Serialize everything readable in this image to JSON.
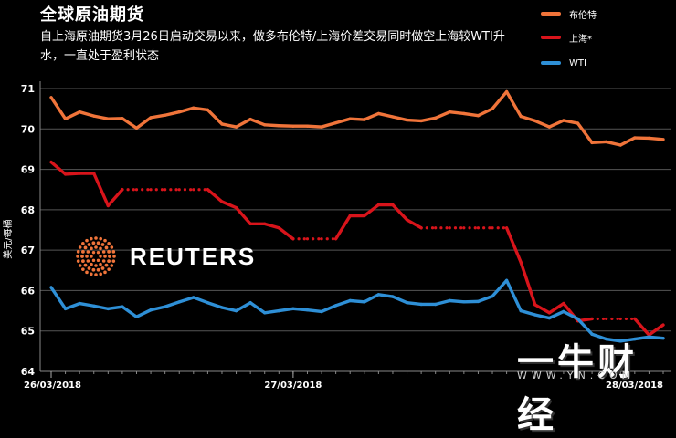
{
  "header": {
    "title": "全球原油期货",
    "subtitle": "自上海原油期货3月26日启动交易以来，做多布伦特/上海价差交易同时做空上海较WTI升水，一直处于盈利状态"
  },
  "branding": {
    "reuters": "REUTERS",
    "watermark_brand": "一牛财经",
    "watermark_url": "WWW.YN.COM"
  },
  "colors": {
    "brent": "#f0743a",
    "shanghai": "#d8141b",
    "wti": "#2e8fd6",
    "grid": "#555555"
  },
  "chart_data": {
    "type": "line",
    "title": "全球原油期货",
    "ylabel": "美元/每桶",
    "xlabel": "",
    "ylim": [
      64,
      71
    ],
    "yticks": [
      64,
      65,
      66,
      67,
      68,
      69,
      70,
      71
    ],
    "x_tick_labels": [
      "26/03/2018",
      "27/03/2018",
      "28/03/2018"
    ],
    "x_tick_positions": [
      0,
      17,
      34
    ],
    "grid": true,
    "legend_position": "top-right",
    "series": [
      {
        "name": "布伦特",
        "color": "#f0743a",
        "values": [
          70.78,
          70.25,
          70.42,
          70.32,
          70.25,
          70.26,
          70.02,
          70.28,
          70.34,
          70.42,
          70.52,
          70.47,
          70.12,
          70.05,
          70.24,
          70.1,
          70.08,
          70.07,
          70.07,
          70.05,
          70.15,
          70.25,
          70.23,
          70.38,
          70.3,
          70.22,
          70.2,
          70.27,
          70.42,
          70.38,
          70.33,
          70.5,
          70.92,
          70.31,
          70.2,
          70.05,
          70.21,
          70.14,
          69.66,
          69.68,
          69.6,
          69.78,
          69.77,
          69.74
        ]
      },
      {
        "name": "上海*",
        "color": "#d8141b",
        "values": [
          69.18,
          68.88,
          68.9,
          68.9,
          68.1,
          68.5,
          68.5,
          68.5,
          68.5,
          68.5,
          68.5,
          68.5,
          68.2,
          68.05,
          67.65,
          67.65,
          67.55,
          67.28,
          67.28,
          67.28,
          67.28,
          67.85,
          67.85,
          68.12,
          68.12,
          67.75,
          67.55,
          67.55,
          67.55,
          67.55,
          67.55,
          67.55,
          67.55,
          66.7,
          65.65,
          65.45,
          65.68,
          65.25,
          65.3,
          65.3,
          65.3,
          65.3,
          64.9,
          65.15
        ],
        "dotted_segments": [
          [
            5,
            11
          ],
          [
            17,
            20
          ],
          [
            26,
            32
          ],
          [
            38,
            41
          ]
        ]
      },
      {
        "name": "WTI",
        "color": "#2e8fd6",
        "values": [
          66.08,
          65.55,
          65.68,
          65.62,
          65.55,
          65.6,
          65.35,
          65.52,
          65.6,
          65.72,
          65.83,
          65.7,
          65.58,
          65.5,
          65.7,
          65.45,
          65.5,
          65.55,
          65.52,
          65.48,
          65.63,
          65.75,
          65.72,
          65.9,
          65.85,
          65.7,
          65.66,
          65.66,
          65.75,
          65.72,
          65.73,
          65.86,
          66.25,
          65.5,
          65.4,
          65.32,
          65.48,
          65.3,
          64.92,
          64.8,
          64.75,
          64.8,
          64.85,
          64.82
        ]
      }
    ]
  }
}
